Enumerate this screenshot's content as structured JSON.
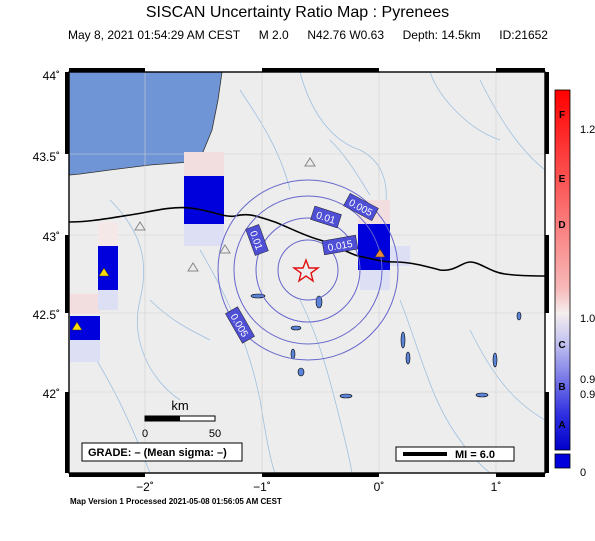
{
  "header": {
    "title": "SISCAN Uncertainty Ratio Map : Pyrenees",
    "date": "May  8, 2021 01:54:29 AM CEST",
    "magnitude": "M 2.0",
    "location": "N42.76 W0.63",
    "depth": "Depth: 14.5km",
    "id": "ID:21652"
  },
  "axes": {
    "lat_labels": [
      "44˚",
      "43.5˚",
      "43˚",
      "42.5˚",
      "42˚"
    ],
    "lon_labels": [
      "−2˚",
      "−1˚",
      "0˚",
      "1˚"
    ]
  },
  "contours": [
    "0.005",
    "0.01",
    "0.015",
    "0.01",
    "0.005"
  ],
  "scale_bar": {
    "unit": "km",
    "min": "0",
    "max": "50"
  },
  "grade_text": "GRADE: – (Mean sigma: –)",
  "legend_mi": "MI = 6.0",
  "colorbar": {
    "letters": [
      "F",
      "E",
      "D",
      "C",
      "B",
      "A"
    ],
    "values": [
      "1.2",
      "1.0",
      "0.9",
      "0.9",
      "0"
    ]
  },
  "footer": "Map Version 1 Processed 2021-05-08 01:56:05 AM CEST",
  "colors": {
    "sea": "#6f95d6",
    "land": "#ededed",
    "grid_blue": "#0000dd",
    "pale_red": "#f2dede",
    "star": "#e01010"
  }
}
